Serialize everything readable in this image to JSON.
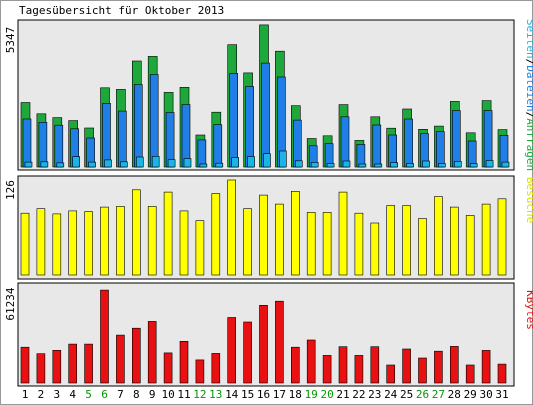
{
  "title": "Tagesübersicht für Oktober 2013",
  "colors": {
    "background": "#ffffff",
    "panel": "#e8e8e8",
    "anfragen": "#1ea83c",
    "dateien": "#1f7fe6",
    "seiten": "#18b5e6",
    "besuche": "#ffff00",
    "kbytes": "#e81010",
    "weekday_label": "#000000",
    "weekend_label": "#009900"
  },
  "days": [
    "1",
    "2",
    "3",
    "4",
    "5",
    "6",
    "7",
    "8",
    "9",
    "10",
    "11",
    "12",
    "13",
    "14",
    "15",
    "16",
    "17",
    "18",
    "19",
    "20",
    "21",
    "22",
    "23",
    "24",
    "25",
    "26",
    "27",
    "28",
    "29",
    "30",
    "31"
  ],
  "weekend_days": [
    "5",
    "6",
    "12",
    "13",
    "19",
    "20",
    "26",
    "27"
  ],
  "chart_data": [
    {
      "type": "bar",
      "panel": "top",
      "y_max_label": "5347",
      "legend": [
        "Anfragen",
        "Dateien",
        "Seiten"
      ],
      "legend_separator": "/",
      "ylim": [
        0,
        5347
      ],
      "series": [
        {
          "name": "Anfragen",
          "values": [
            2380,
            1960,
            1820,
            1710,
            1440,
            2920,
            2860,
            3910,
            4080,
            2750,
            2940,
            1180,
            2020,
            4510,
            3470,
            5240,
            4270,
            2260,
            1050,
            1150,
            2300,
            980,
            1850,
            1430,
            2140,
            1390,
            1510,
            2420,
            1260,
            2450,
            1380
          ]
        },
        {
          "name": "Dateien",
          "values": [
            1770,
            1650,
            1540,
            1410,
            1070,
            2350,
            2060,
            3040,
            3410,
            2010,
            2300,
            1000,
            1560,
            3450,
            2970,
            3830,
            3320,
            1730,
            780,
            860,
            1850,
            830,
            1550,
            1180,
            1770,
            1230,
            1300,
            2080,
            960,
            2080,
            1170
          ]
        },
        {
          "name": "Seiten",
          "values": [
            180,
            190,
            150,
            380,
            180,
            260,
            190,
            370,
            390,
            270,
            310,
            110,
            140,
            350,
            380,
            490,
            590,
            230,
            170,
            130,
            220,
            110,
            110,
            160,
            130,
            220,
            130,
            210,
            120,
            240,
            180
          ]
        }
      ]
    },
    {
      "type": "bar",
      "panel": "middle",
      "y_max_label": "126",
      "legend": [
        "Besuche"
      ],
      "ylim": [
        0,
        126
      ],
      "series": [
        {
          "name": "Besuche",
          "values": [
            82,
            88,
            81,
            85,
            84,
            90,
            91,
            113,
            91,
            110,
            85,
            72,
            108,
            126,
            88,
            106,
            94,
            111,
            83,
            83,
            110,
            82,
            69,
            92,
            92,
            75,
            104,
            90,
            79,
            94,
            101
          ]
        }
      ]
    },
    {
      "type": "bar",
      "panel": "bottom",
      "y_max_label": "61234",
      "legend": [
        "KBytes"
      ],
      "ylim": [
        0,
        61234
      ],
      "series": [
        {
          "name": "KBytes",
          "values": [
            23100,
            18900,
            21100,
            25100,
            25100,
            59900,
            30900,
            35300,
            39700,
            19400,
            26900,
            14900,
            19100,
            42200,
            39300,
            50100,
            52700,
            23100,
            27700,
            17800,
            23400,
            17800,
            23400,
            11600,
            21900,
            16100,
            20500,
            23600,
            11600,
            21000,
            12200
          ]
        }
      ]
    }
  ]
}
